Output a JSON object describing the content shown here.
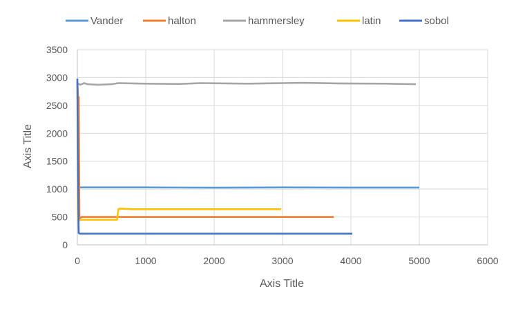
{
  "chart_data": {
    "type": "line",
    "xlabel": "Axis Title",
    "ylabel": "Axis Title",
    "xlim": [
      0,
      6000
    ],
    "ylim": [
      0,
      3500
    ],
    "x_ticks": [
      "0",
      "1000",
      "2000",
      "3000",
      "4000",
      "5000",
      "6000"
    ],
    "y_ticks": [
      "0",
      "500",
      "1000",
      "1500",
      "2000",
      "2500",
      "3000",
      "3500"
    ],
    "grid": true,
    "legend_position": "top",
    "series": [
      {
        "name": "Vander",
        "color": "#5B9BD5",
        "points": [
          [
            0,
            2900
          ],
          [
            10,
            2300
          ],
          [
            20,
            1050
          ],
          [
            40,
            1030
          ],
          [
            1000,
            1030
          ],
          [
            2000,
            1025
          ],
          [
            3000,
            1030
          ],
          [
            4000,
            1028
          ],
          [
            5000,
            1028
          ]
        ]
      },
      {
        "name": "halton",
        "color": "#ED7D31",
        "points": [
          [
            0,
            2950
          ],
          [
            10,
            2650
          ],
          [
            20,
            2650
          ],
          [
            30,
            500
          ],
          [
            40,
            480
          ],
          [
            60,
            500
          ],
          [
            1000,
            500
          ],
          [
            2000,
            500
          ],
          [
            3000,
            500
          ],
          [
            3750,
            500
          ]
        ]
      },
      {
        "name": "hammersley",
        "color": "#A5A5A5",
        "points": [
          [
            0,
            2900
          ],
          [
            40,
            2870
          ],
          [
            100,
            2900
          ],
          [
            150,
            2880
          ],
          [
            300,
            2870
          ],
          [
            500,
            2880
          ],
          [
            600,
            2900
          ],
          [
            1000,
            2890
          ],
          [
            1500,
            2885
          ],
          [
            1800,
            2900
          ],
          [
            2500,
            2890
          ],
          [
            3000,
            2900
          ],
          [
            3300,
            2905
          ],
          [
            3800,
            2895
          ],
          [
            4500,
            2890
          ],
          [
            4950,
            2880
          ]
        ]
      },
      {
        "name": "latin",
        "color": "#FFC000",
        "points": [
          [
            0,
            2800
          ],
          [
            10,
            500
          ],
          [
            20,
            430
          ],
          [
            40,
            450
          ],
          [
            300,
            450
          ],
          [
            580,
            450
          ],
          [
            600,
            640
          ],
          [
            620,
            650
          ],
          [
            800,
            640
          ],
          [
            1500,
            640
          ],
          [
            2000,
            640
          ],
          [
            2500,
            640
          ],
          [
            2980,
            640
          ]
        ]
      },
      {
        "name": "sobol",
        "color": "#4472C4",
        "points": [
          [
            0,
            2980
          ],
          [
            10,
            1000
          ],
          [
            20,
            210
          ],
          [
            40,
            200
          ],
          [
            500,
            200
          ],
          [
            1000,
            200
          ],
          [
            2000,
            200
          ],
          [
            3000,
            200
          ],
          [
            4020,
            200
          ]
        ]
      }
    ]
  }
}
